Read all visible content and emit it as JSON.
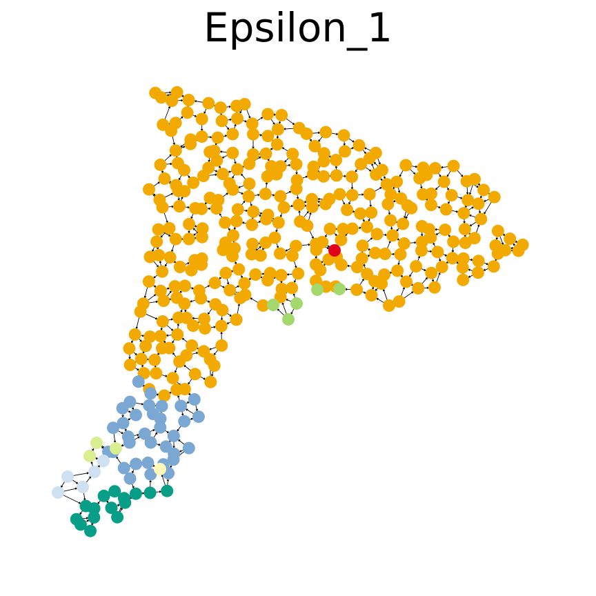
{
  "title": "Epsilon_1",
  "legend": [],
  "clusters": [
    {
      "name": "orange",
      "color": "#F2A900",
      "count": 330
    },
    {
      "name": "red",
      "color": "#E2001A",
      "count": 1
    },
    {
      "name": "green",
      "color": "#A3D86D",
      "count": 6
    },
    {
      "name": "blue",
      "color": "#7BA8D3",
      "count": 38
    },
    {
      "name": "teal",
      "color": "#069E86",
      "count": 24
    },
    {
      "name": "lightblue",
      "color": "#CFE0F0",
      "count": 5
    },
    {
      "name": "lime",
      "color": "#D9EE90",
      "count": 3
    },
    {
      "name": "cream",
      "color": "#FFF7B8",
      "count": 1
    }
  ],
  "edge_color": "#000000",
  "directed": true
}
